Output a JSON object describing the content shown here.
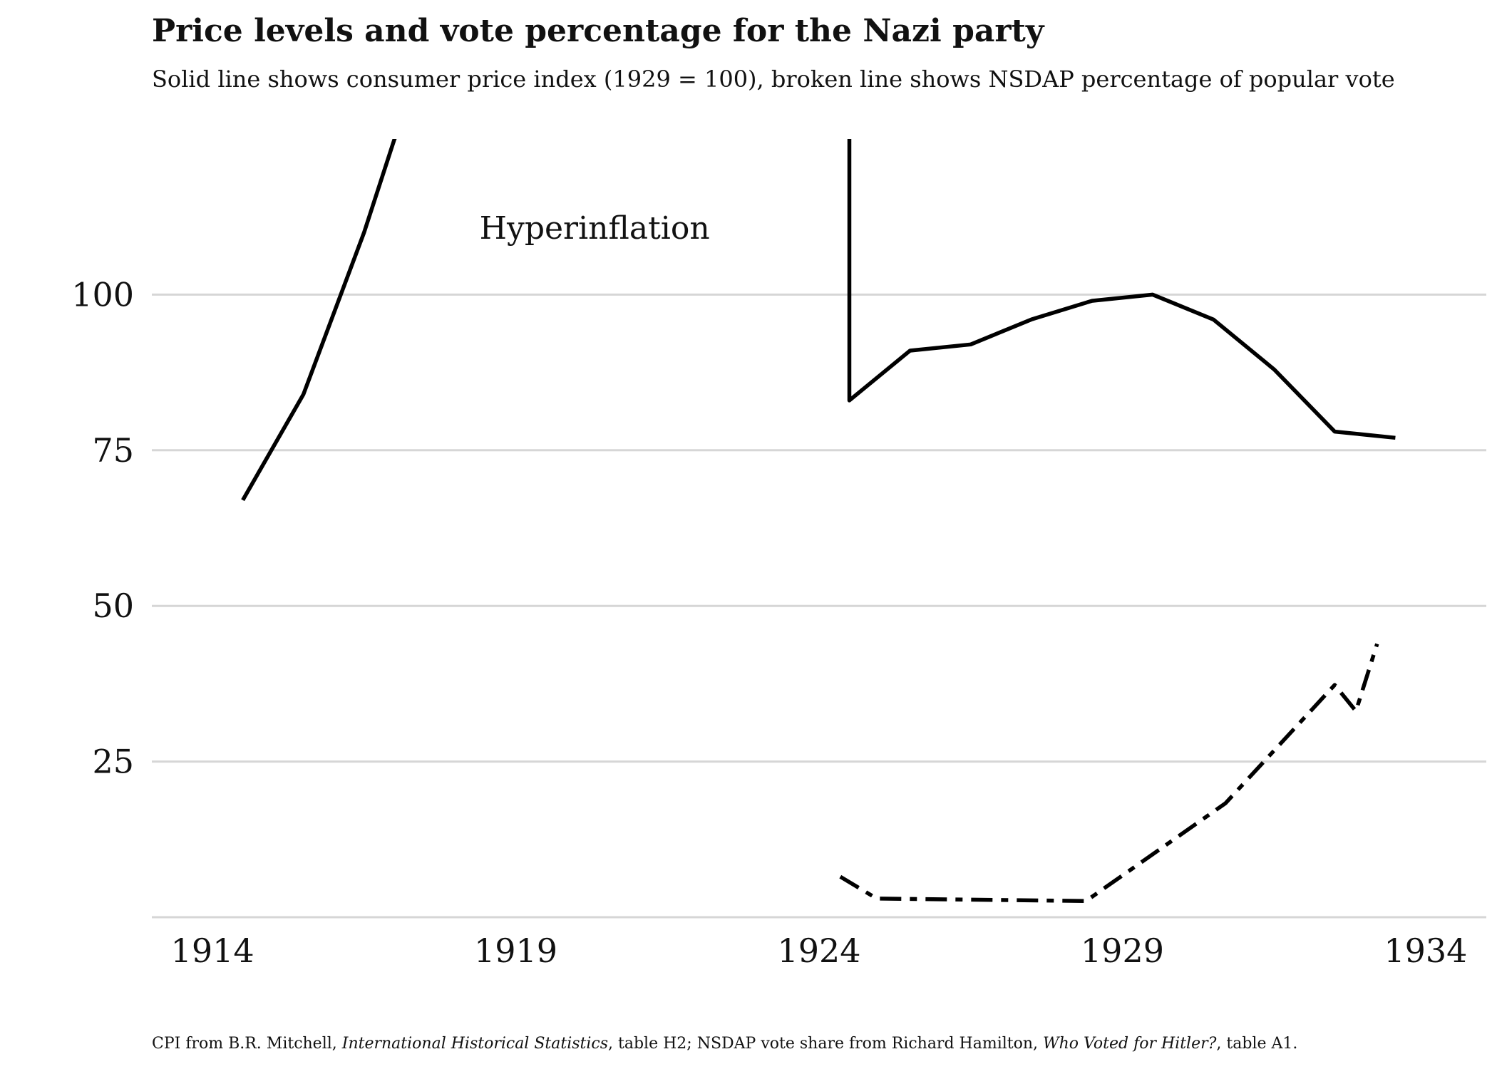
{
  "chart_data": {
    "type": "line",
    "title": "Price levels and vote percentage for the Nazi party",
    "subtitle": "Solid line shows consumer price index (1929 = 100), broken line shows NSDAP percentage of popular vote",
    "xlabel": "",
    "ylabel": "",
    "xlim": [
      1913,
      1935
    ],
    "ylim": [
      0,
      125
    ],
    "x_ticks": [
      "1914",
      "1919",
      "1924",
      "1929",
      "1934"
    ],
    "y_ticks": [
      "25",
      "50",
      "75",
      "100"
    ],
    "grid": "horizontal",
    "series": [
      {
        "name": "Consumer price index (1929 = 100)",
        "style": "solid",
        "segments": [
          {
            "x": [
              1914.5,
              1915.5,
              1916.5,
              1917.0,
              1917.3
            ],
            "y": [
              67,
              84,
              110,
              125,
              130
            ]
          },
          {
            "x": [
              1924.5,
              1924.5,
              1925.5,
              1926.5,
              1927.5,
              1928.5,
              1929.5,
              1930.5,
              1931.5,
              1932.5,
              1933.5
            ],
            "y": [
              130,
              83,
              91,
              92,
              96,
              99,
              100,
              96,
              88,
              78,
              77
            ]
          }
        ]
      },
      {
        "name": "NSDAP percentage of popular vote",
        "style": "dashed",
        "segments": [
          {
            "x": [
              1924.35,
              1924.95,
              1928.4,
              1930.7,
              1932.5,
              1932.85,
              1933.2
            ],
            "y": [
              6.5,
              3.0,
              2.6,
              18.3,
              37.3,
              33.1,
              43.9
            ]
          }
        ]
      }
    ],
    "annotations": [
      {
        "text": "Hyperinflation",
        "x": 1920.3,
        "y": 109
      }
    ]
  },
  "caption": {
    "part1": "CPI from B.R. Mitchell, ",
    "source1": "International Historical Statistics",
    "part2": ", table H2; NSDAP vote share from Richard Hamilton, ",
    "source2": "Who Voted  for Hitler?",
    "part3": ", table A1."
  }
}
